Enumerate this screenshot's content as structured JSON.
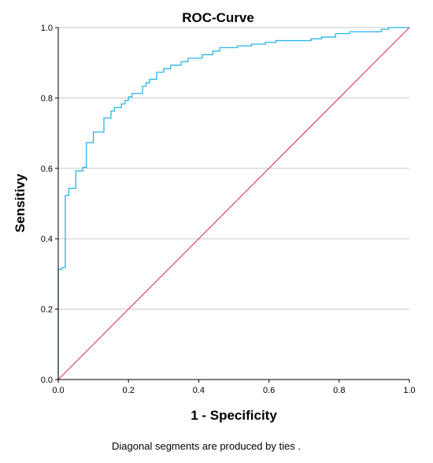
{
  "chart_data": {
    "type": "line",
    "title": "ROC-Curve",
    "xlabel": "1 - Specificity",
    "ylabel": "Sensitivy",
    "footnote": "Diagonal segments are produced by ties .",
    "xlim": [
      0,
      1
    ],
    "ylim": [
      0,
      1
    ],
    "x_ticks": [
      "0.0",
      "0.2",
      "0.4",
      "0.6",
      "0.8",
      "1.0"
    ],
    "y_ticks": [
      "0.0",
      "0.2",
      "0.4",
      "0.6",
      "0.8",
      "1.0"
    ],
    "grid": "horizontal",
    "colors": {
      "roc_curve": "#29b6e8",
      "reference_line": "#d6336c",
      "grid": "#c8c8c8",
      "axis": "#000000"
    },
    "series": [
      {
        "kind": "roc",
        "x": [
          0.0,
          0.0,
          0.01,
          0.01,
          0.02,
          0.02,
          0.03,
          0.03,
          0.05,
          0.05,
          0.07,
          0.07,
          0.08,
          0.08,
          0.1,
          0.1,
          0.13,
          0.13,
          0.15,
          0.15,
          0.16,
          0.16,
          0.18,
          0.18,
          0.19,
          0.19,
          0.2,
          0.2,
          0.21,
          0.21,
          0.24,
          0.24,
          0.25,
          0.25,
          0.26,
          0.26,
          0.28,
          0.28,
          0.3,
          0.3,
          0.32,
          0.32,
          0.35,
          0.35,
          0.37,
          0.37,
          0.41,
          0.41,
          0.44,
          0.44,
          0.46,
          0.46,
          0.51,
          0.51,
          0.55,
          0.55,
          0.59,
          0.59,
          0.62,
          0.62,
          0.72,
          0.72,
          0.75,
          0.75,
          0.79,
          0.79,
          0.83,
          0.83,
          0.92,
          0.92,
          0.94,
          0.94,
          1.0
        ],
        "y": [
          0.0,
          0.313,
          0.313,
          0.318,
          0.318,
          0.523,
          0.523,
          0.543,
          0.543,
          0.593,
          0.593,
          0.603,
          0.603,
          0.673,
          0.673,
          0.703,
          0.703,
          0.743,
          0.743,
          0.763,
          0.763,
          0.773,
          0.773,
          0.783,
          0.783,
          0.793,
          0.793,
          0.803,
          0.803,
          0.813,
          0.813,
          0.833,
          0.833,
          0.843,
          0.843,
          0.853,
          0.853,
          0.873,
          0.873,
          0.883,
          0.883,
          0.893,
          0.893,
          0.903,
          0.903,
          0.913,
          0.913,
          0.923,
          0.923,
          0.933,
          0.933,
          0.943,
          0.943,
          0.948,
          0.948,
          0.953,
          0.953,
          0.958,
          0.958,
          0.963,
          0.963,
          0.968,
          0.968,
          0.973,
          0.973,
          0.983,
          0.983,
          0.988,
          0.988,
          0.995,
          0.995,
          1.0,
          1.0
        ]
      },
      {
        "kind": "reference",
        "x": [
          0.0,
          1.0
        ],
        "y": [
          0.0,
          1.0
        ]
      }
    ]
  }
}
